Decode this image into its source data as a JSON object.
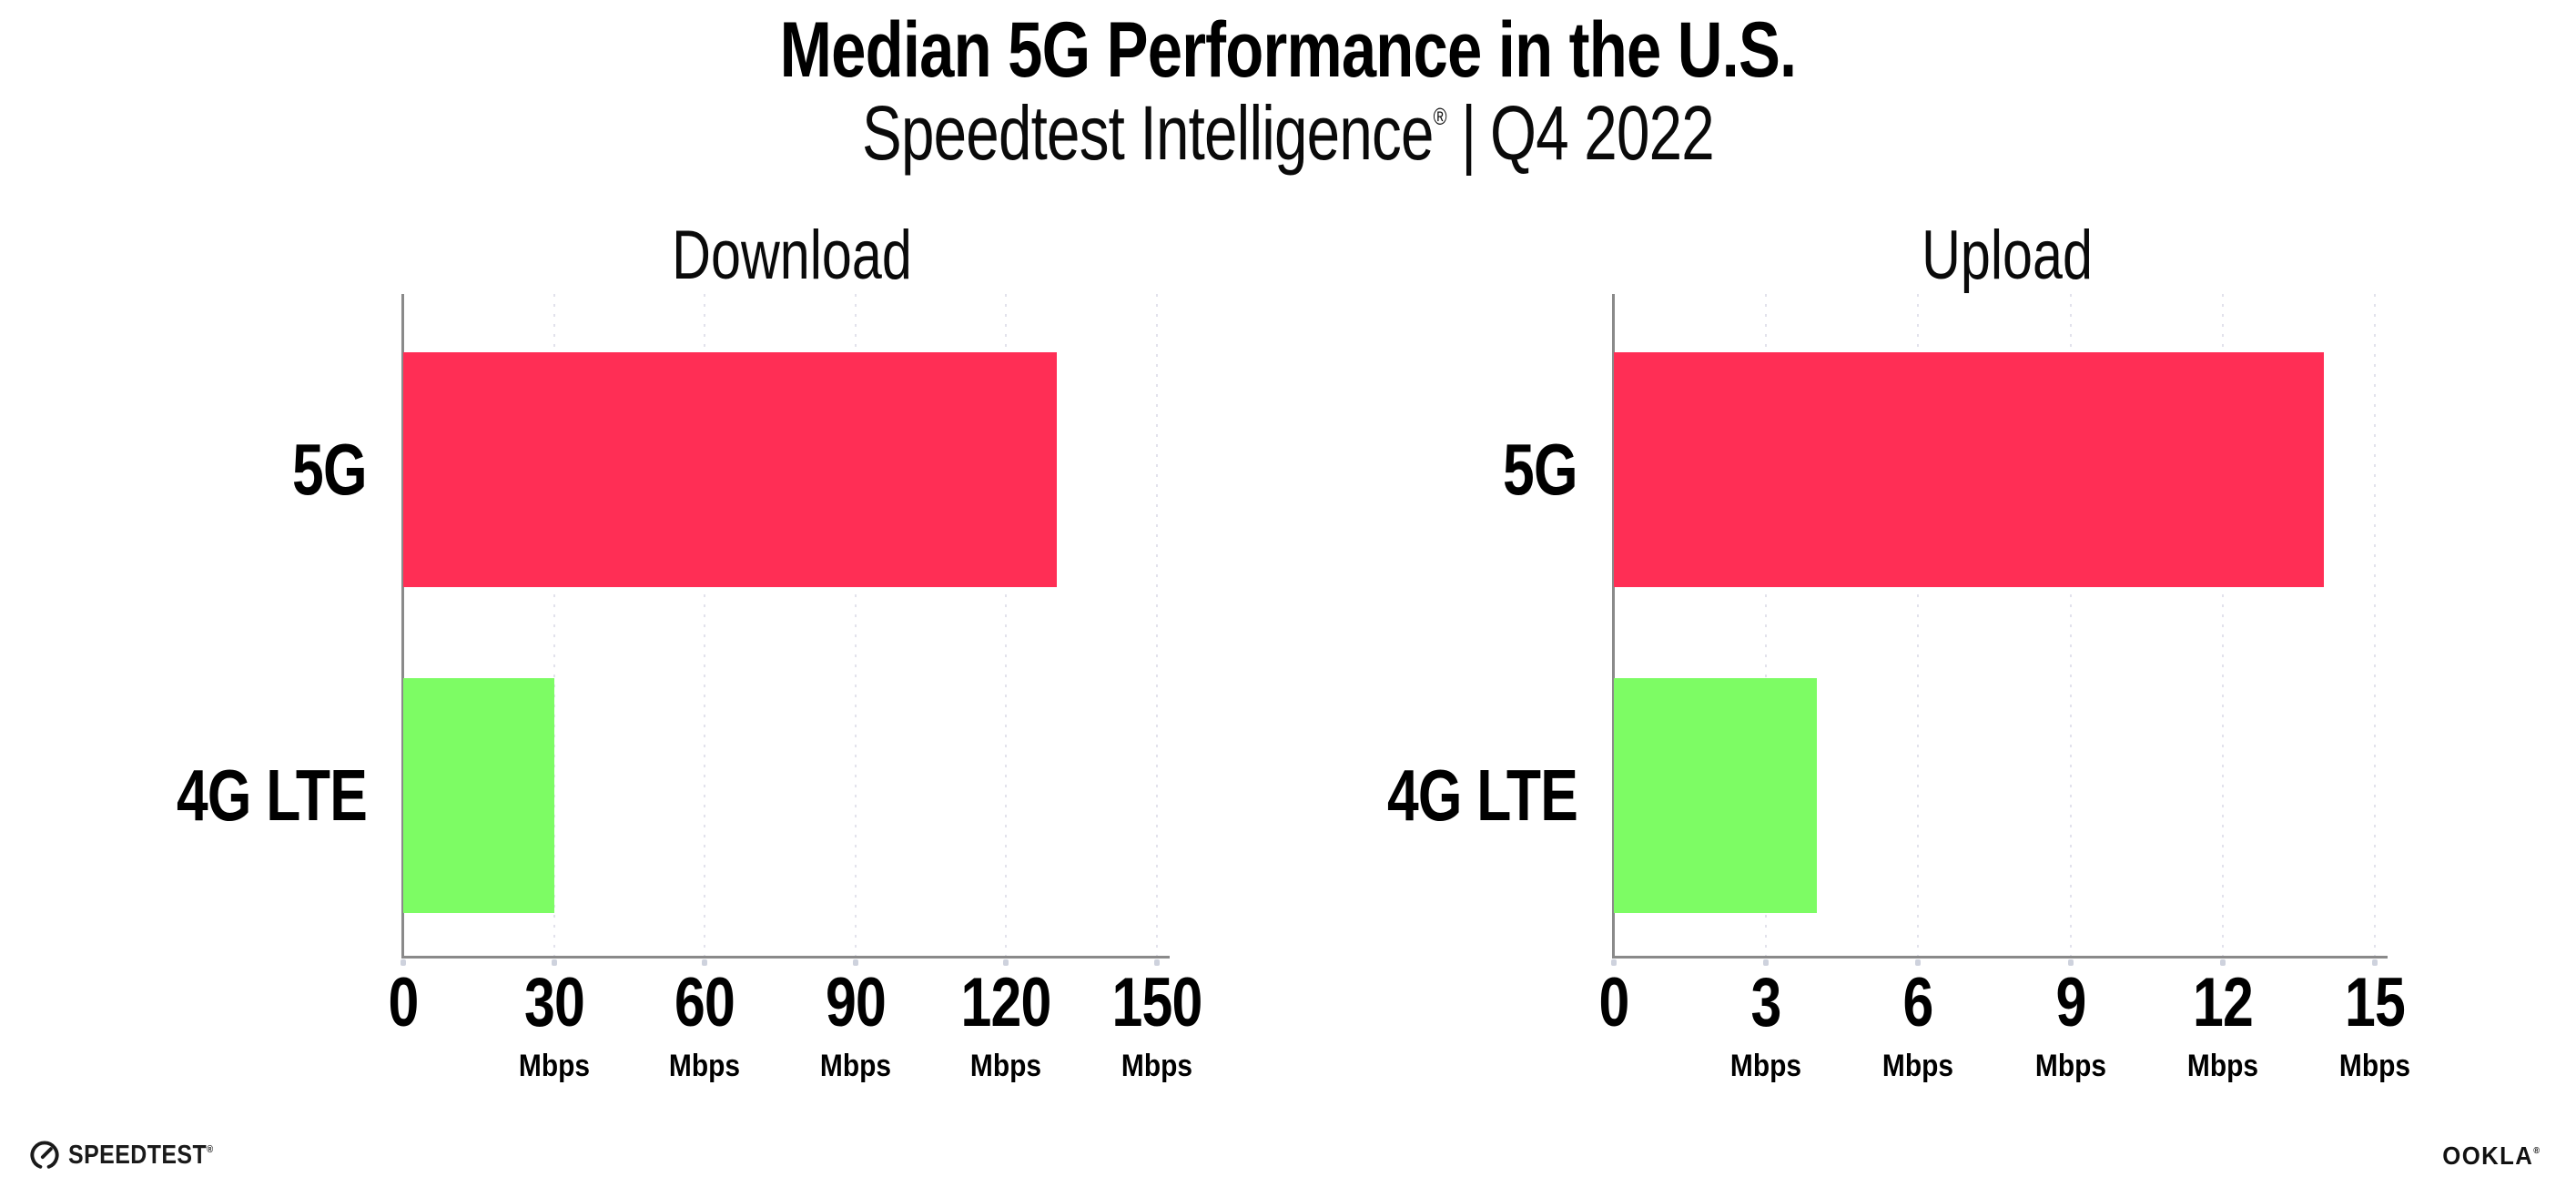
{
  "header": {
    "title": "Median 5G Performance in the U.S.",
    "subtitle_brand": "Speedtest Intelligence",
    "subtitle_reg": "®",
    "subtitle_divider": "|",
    "subtitle_period": "Q4 2022"
  },
  "colors": {
    "bar_5g": "#ff2e55",
    "bar_4g_lte": "#7dfc64",
    "gridline": "#e2e2ec",
    "axis": "#8a8a8a",
    "tick_dot": "#c9cdd9",
    "text": "#000000"
  },
  "chart_data": [
    {
      "type": "bar",
      "orientation": "horizontal",
      "title": "Download",
      "categories": [
        "5G",
        "4G LTE"
      ],
      "values": [
        130,
        30
      ],
      "unit": "Mbps",
      "xlim": [
        0,
        150
      ],
      "xticks": [
        0,
        30,
        60,
        90,
        120,
        150
      ],
      "tick_unit_label": "Mbps",
      "bar_colors": [
        "#ff2e55",
        "#7dfc64"
      ],
      "grid": "dotted-vertical",
      "legend": "none"
    },
    {
      "type": "bar",
      "orientation": "horizontal",
      "title": "Upload",
      "categories": [
        "5G",
        "4G LTE"
      ],
      "values": [
        14,
        4
      ],
      "unit": "Mbps",
      "xlim": [
        0,
        15
      ],
      "xticks": [
        0,
        3,
        6,
        9,
        12,
        15
      ],
      "tick_unit_label": "Mbps",
      "bar_colors": [
        "#ff2e55",
        "#7dfc64"
      ],
      "grid": "dotted-vertical",
      "legend": "none"
    }
  ],
  "footer": {
    "speedtest_label": "SPEEDTEST",
    "speedtest_reg": "®",
    "ookla_label": "OOKLA",
    "ookla_reg": "®"
  }
}
